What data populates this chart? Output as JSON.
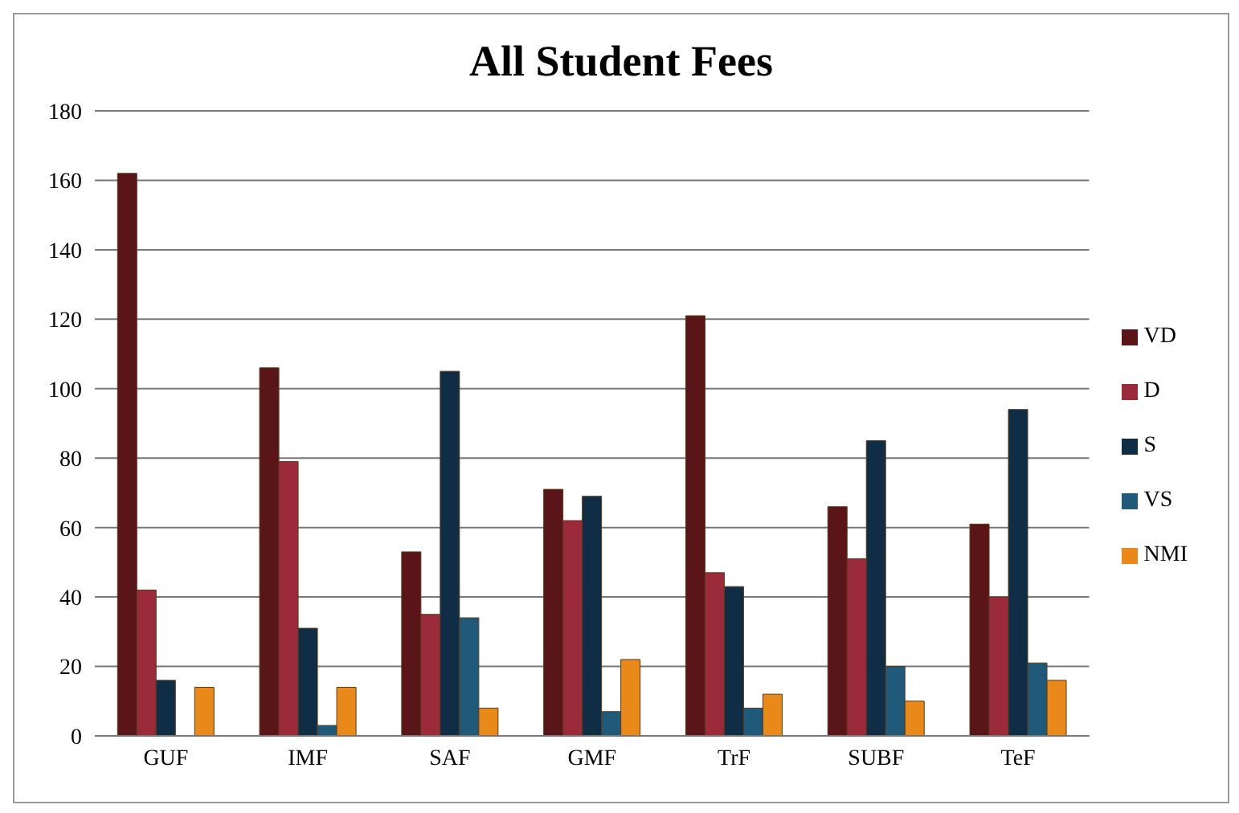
{
  "chart_data": {
    "type": "bar",
    "title": "All Student Fees",
    "categories": [
      "GUF",
      "IMF",
      "SAF",
      "GMF",
      "TrF",
      "SUBF",
      "TeF"
    ],
    "series": [
      {
        "name": "VD",
        "color": "#5a1519",
        "values": [
          162,
          106,
          53,
          71,
          121,
          66,
          61
        ]
      },
      {
        "name": "D",
        "color": "#9b2a3a",
        "values": [
          42,
          79,
          35,
          62,
          47,
          51,
          40
        ]
      },
      {
        "name": "S",
        "color": "#0f2d44",
        "values": [
          16,
          31,
          105,
          69,
          43,
          85,
          94
        ]
      },
      {
        "name": "VS",
        "color": "#1f5a7a",
        "values": [
          0,
          3,
          34,
          7,
          8,
          20,
          21
        ]
      },
      {
        "name": "NMI",
        "color": "#e8891a",
        "values": [
          14,
          14,
          8,
          22,
          12,
          10,
          16
        ]
      }
    ],
    "ylim": [
      0,
      180
    ],
    "yticks": [
      0,
      20,
      40,
      60,
      80,
      100,
      120,
      140,
      160,
      180
    ],
    "grid": "y",
    "legend": "right"
  }
}
